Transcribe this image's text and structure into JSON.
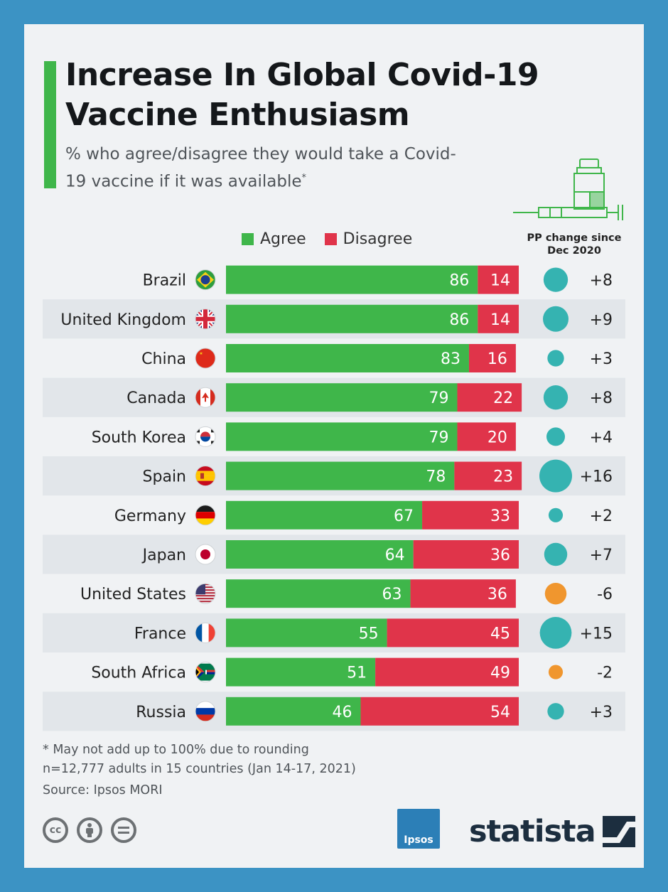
{
  "title": "Increase In Global Covid-19 Vaccine Enthusiasm",
  "subtitle": "% who agree/disagree they would take a Covid-19 vaccine if it was available",
  "subtitle_marker": "*",
  "legend": {
    "agree": "Agree",
    "disagree": "Disagree"
  },
  "pp_header": "PP change since Dec 2020",
  "colors": {
    "agree": "#3fb64a",
    "disagree": "#e0344a",
    "pp_positive": "#35b3b1",
    "pp_negative": "#f0962e",
    "accent": "#3fb64a",
    "frame": "#3c93c4"
  },
  "chart_data": {
    "type": "bar",
    "orientation": "horizontal",
    "stacked": true,
    "categories": [
      "Brazil",
      "United Kingdom",
      "China",
      "Canada",
      "South Korea",
      "Spain",
      "Germany",
      "Japan",
      "United States",
      "France",
      "South Africa",
      "Russia"
    ],
    "series": [
      {
        "name": "Agree",
        "values": [
          86,
          86,
          83,
          79,
          79,
          78,
          67,
          64,
          63,
          55,
          51,
          46
        ]
      },
      {
        "name": "Disagree",
        "values": [
          14,
          14,
          16,
          22,
          20,
          23,
          33,
          36,
          36,
          45,
          49,
          54
        ]
      }
    ],
    "pp_change": {
      "values": [
        8,
        9,
        3,
        8,
        4,
        16,
        2,
        7,
        -6,
        15,
        -2,
        3
      ],
      "labels": [
        "+8",
        "+9",
        "+3",
        "+8",
        "+4",
        "+16",
        "+2",
        "+7",
        "-6",
        "+15",
        "-2",
        "+3"
      ]
    },
    "flag_icons": [
      "brazil-flag-icon",
      "uk-flag-icon",
      "china-flag-icon",
      "canada-flag-icon",
      "south-korea-flag-icon",
      "spain-flag-icon",
      "germany-flag-icon",
      "japan-flag-icon",
      "usa-flag-icon",
      "france-flag-icon",
      "south-africa-flag-icon",
      "russia-flag-icon"
    ]
  },
  "footnotes": {
    "rounding": "* May not add up to 100% due to rounding",
    "sample": "n=12,777 adults in 15 countries (Jan 14-17, 2021)",
    "source": "Source: Ipsos MORI"
  },
  "logos": {
    "ipsos": "Ipsos",
    "statista": "statista"
  },
  "license_icons": [
    "cc-icon",
    "attribution-icon",
    "no-derivatives-icon"
  ]
}
